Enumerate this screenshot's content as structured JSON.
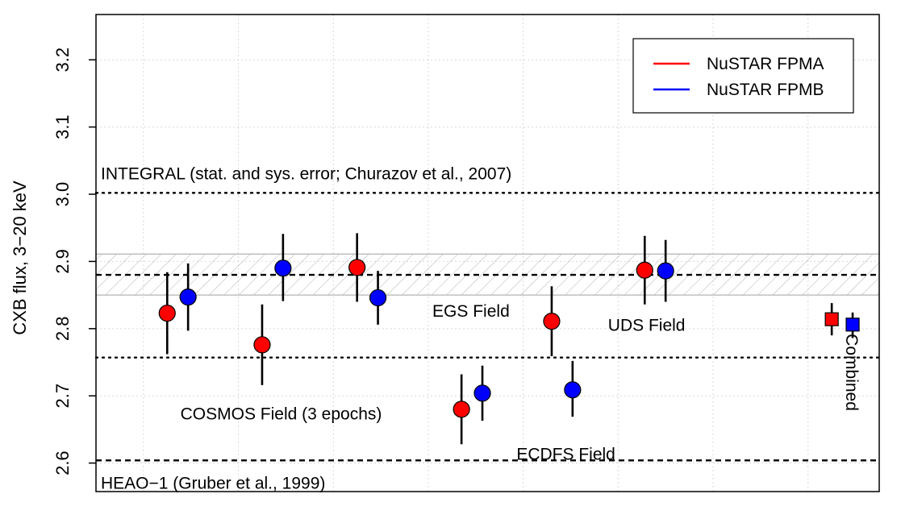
{
  "chart_data": {
    "type": "scatter",
    "title": "",
    "xlabel": "",
    "ylabel": "CXB flux, 3−20 keV",
    "ylim": [
      2.53,
      3.23
    ],
    "yticks": [
      2.6,
      2.7,
      2.8,
      2.9,
      3.0,
      3.1,
      3.2
    ],
    "ytick_labels": [
      "2.6",
      "2.7",
      "2.8",
      "2.9",
      "3.0",
      "3.1",
      "3.2"
    ],
    "xlim": [
      0.5,
      8.75
    ],
    "grid": true,
    "legend_position": "top-right",
    "legend": [
      {
        "label": "NuSTAR FPMA",
        "color": "#ff0000"
      },
      {
        "label": "NuSTAR FPMB",
        "color": "#0000ff"
      }
    ],
    "colors": {
      "fpma": "#ff0000",
      "fpmb": "#0000ff"
    },
    "series": [
      {
        "name": "NuSTAR FPMA",
        "marker": "circle",
        "color": "#ff0000",
        "x": [
          1.25,
          2.25,
          3.25,
          4.35,
          5.3,
          6.28
        ],
        "y": [
          2.823,
          2.776,
          2.891,
          2.68,
          2.811,
          2.887
        ],
        "err_low": [
          2.762,
          2.716,
          2.84,
          2.628,
          2.759,
          2.836
        ],
        "err_high": [
          2.884,
          2.836,
          2.942,
          2.732,
          2.863,
          2.938
        ]
      },
      {
        "name": "NuSTAR FPMB",
        "marker": "circle",
        "color": "#0000ff",
        "x": [
          1.47,
          2.47,
          3.47,
          4.57,
          5.52,
          6.5
        ],
        "y": [
          2.847,
          2.89,
          2.846,
          2.704,
          2.709,
          2.886
        ],
        "err_low": [
          2.797,
          2.841,
          2.806,
          2.663,
          2.669,
          2.84
        ],
        "err_high": [
          2.897,
          2.941,
          2.886,
          2.745,
          2.752,
          2.932
        ]
      },
      {
        "marker": "square",
        "color": "#ff0000",
        "x": [
          8.25
        ],
        "y": [
          2.814
        ],
        "err_low": [
          2.79
        ],
        "err_high": [
          2.838
        ]
      },
      {
        "marker": "square",
        "color": "#0000ff",
        "x": [
          8.47
        ],
        "y": [
          2.806
        ],
        "err_low": [
          2.786
        ],
        "err_high": [
          2.824
        ]
      }
    ],
    "reference_lines": [
      {
        "y": 3.002,
        "style": "dotted",
        "label": "INTEGRAL (stat. and sys. error; Churazov et al., 2007)"
      },
      {
        "y": 2.757,
        "style": "dotted",
        "label": ""
      },
      {
        "y": 2.604,
        "style": "dashed",
        "label": "HEAO−1 (Gruber et al., 1999)"
      },
      {
        "y": 2.88,
        "style": "dashed",
        "label": ""
      }
    ],
    "band": {
      "y0": 2.85,
      "y1": 2.911,
      "style": "hatched"
    },
    "annotations": [
      {
        "text": "COSMOS Field (3 epochs)",
        "x": 2.45,
        "y": 2.665,
        "rotate": false
      },
      {
        "text": "EGS Field",
        "x": 4.45,
        "y": 2.818,
        "rotate": false
      },
      {
        "text": "ECDFS Field",
        "x": 5.45,
        "y": 2.605,
        "rotate": false
      },
      {
        "text": "UDS Field",
        "x": 6.3,
        "y": 2.797,
        "rotate": false
      },
      {
        "text": "Combined",
        "x": 8.4,
        "y": 2.735,
        "rotate": true
      }
    ]
  }
}
